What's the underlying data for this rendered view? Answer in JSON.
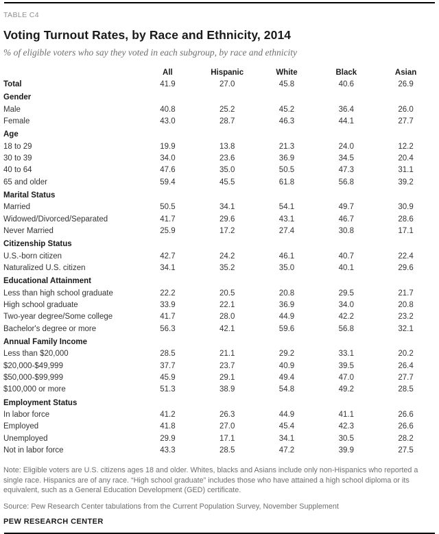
{
  "meta": {
    "kicker": "TABLE C4",
    "title": "Voting Turnout Rates, by Race and Ethnicity, 2014",
    "subtitle": "% of eligible voters who say they voted in each subgroup, by race and ethnicity",
    "note": "Note: Eligible voters are U.S. citizens ages 18 and older. Whites, blacks and Asians include only non-Hispanics who reported a single race. Hispanics are of any race. “High school graduate” includes those who have attained a high school diploma or its equivalent, such as a General Education Development (GED) certificate.",
    "source": "Source: Pew Research Center tabulations from the Current Population Survey, November Supplement",
    "footer": "PEW RESEARCH CENTER"
  },
  "chart_data": {
    "type": "table",
    "title": "Voting Turnout Rates, by Race and Ethnicity, 2014",
    "value_unit": "percent of eligible voters",
    "columns": [
      "All",
      "Hispanic",
      "White",
      "Black",
      "Asian"
    ],
    "rows": [
      {
        "label": "Total",
        "style": "bold",
        "indent": 0,
        "values": [
          "41.9",
          "27.0",
          "45.8",
          "40.6",
          "26.9"
        ]
      },
      {
        "label": "Gender",
        "style": "section",
        "indent": 0,
        "values": []
      },
      {
        "label": "Male",
        "style": "normal",
        "indent": 1,
        "values": [
          "40.8",
          "25.2",
          "45.2",
          "36.4",
          "26.0"
        ]
      },
      {
        "label": "Female",
        "style": "normal",
        "indent": 1,
        "values": [
          "43.0",
          "28.7",
          "46.3",
          "44.1",
          "27.7"
        ]
      },
      {
        "label": "Age",
        "style": "section",
        "indent": 0,
        "values": []
      },
      {
        "label": "18 to 29",
        "style": "normal",
        "indent": 1,
        "values": [
          "19.9",
          "13.8",
          "21.3",
          "24.0",
          "12.2"
        ]
      },
      {
        "label": "30 to 39",
        "style": "normal",
        "indent": 1,
        "values": [
          "34.0",
          "23.6",
          "36.9",
          "34.5",
          "20.4"
        ]
      },
      {
        "label": "40 to 64",
        "style": "normal",
        "indent": 1,
        "values": [
          "47.6",
          "35.0",
          "50.5",
          "47.3",
          "31.1"
        ]
      },
      {
        "label": "65 and older",
        "style": "normal",
        "indent": 1,
        "values": [
          "59.4",
          "45.5",
          "61.8",
          "56.8",
          "39.2"
        ]
      },
      {
        "label": "Marital Status",
        "style": "section",
        "indent": 0,
        "values": []
      },
      {
        "label": "Married",
        "style": "normal",
        "indent": 1,
        "values": [
          "50.5",
          "34.1",
          "54.1",
          "49.7",
          "30.9"
        ]
      },
      {
        "label": "Widowed/Divorced/Separated",
        "style": "normal",
        "indent": 1,
        "values": [
          "41.7",
          "29.6",
          "43.1",
          "46.7",
          "28.6"
        ]
      },
      {
        "label": "Never Married",
        "style": "normal",
        "indent": 1,
        "values": [
          "25.9",
          "17.2",
          "27.4",
          "30.8",
          "17.1"
        ]
      },
      {
        "label": "Citizenship Status",
        "style": "section",
        "indent": 0,
        "values": []
      },
      {
        "label": "U.S.-born citizen",
        "style": "normal",
        "indent": 1,
        "values": [
          "42.7",
          "24.2",
          "46.1",
          "40.7",
          "22.4"
        ]
      },
      {
        "label": "Naturalized U.S. citizen",
        "style": "normal",
        "indent": 1,
        "values": [
          "34.1",
          "35.2",
          "35.0",
          "40.1",
          "29.6"
        ]
      },
      {
        "label": "Educational Attainment",
        "style": "section",
        "indent": 0,
        "values": []
      },
      {
        "label": "Less than high school graduate",
        "style": "normal",
        "indent": 1,
        "values": [
          "22.2",
          "20.5",
          "20.8",
          "29.5",
          "21.7"
        ]
      },
      {
        "label": "High school graduate",
        "style": "normal",
        "indent": 1,
        "values": [
          "33.9",
          "22.1",
          "36.9",
          "34.0",
          "20.8"
        ]
      },
      {
        "label": "Two-year degree/Some college",
        "style": "normal",
        "indent": 1,
        "values": [
          "41.7",
          "28.0",
          "44.9",
          "42.2",
          "23.2"
        ]
      },
      {
        "label": "Bachelor's degree or more",
        "style": "normal",
        "indent": 1,
        "values": [
          "56.3",
          "42.1",
          "59.6",
          "56.8",
          "32.1"
        ]
      },
      {
        "label": "Annual Family Income",
        "style": "section",
        "indent": 0,
        "values": []
      },
      {
        "label": "Less than $20,000",
        "style": "normal",
        "indent": 1,
        "values": [
          "28.5",
          "21.1",
          "29.2",
          "33.1",
          "20.2"
        ]
      },
      {
        "label": "$20,000-$49,999",
        "style": "normal",
        "indent": 1,
        "values": [
          "37.7",
          "23.7",
          "40.9",
          "39.5",
          "26.4"
        ]
      },
      {
        "label": "$50,000-$99,999",
        "style": "normal",
        "indent": 1,
        "values": [
          "45.9",
          "29.1",
          "49.4",
          "47.0",
          "27.7"
        ]
      },
      {
        "label": "$100,000 or more",
        "style": "normal",
        "indent": 1,
        "values": [
          "51.3",
          "38.9",
          "54.8",
          "49.2",
          "28.5"
        ]
      },
      {
        "label": "Employment Status",
        "style": "section",
        "indent": 0,
        "values": []
      },
      {
        "label": "In labor force",
        "style": "normal",
        "indent": 1,
        "values": [
          "41.2",
          "26.3",
          "44.9",
          "41.1",
          "26.6"
        ]
      },
      {
        "label": "Employed",
        "style": "normal",
        "indent": 2,
        "values": [
          "41.8",
          "27.0",
          "45.4",
          "42.3",
          "26.6"
        ]
      },
      {
        "label": "Unemployed",
        "style": "normal",
        "indent": 2,
        "values": [
          "29.9",
          "17.1",
          "34.1",
          "30.5",
          "28.2"
        ]
      },
      {
        "label": "Not in labor force",
        "style": "normal",
        "indent": 1,
        "values": [
          "43.3",
          "28.5",
          "47.2",
          "39.9",
          "27.5"
        ]
      }
    ]
  }
}
